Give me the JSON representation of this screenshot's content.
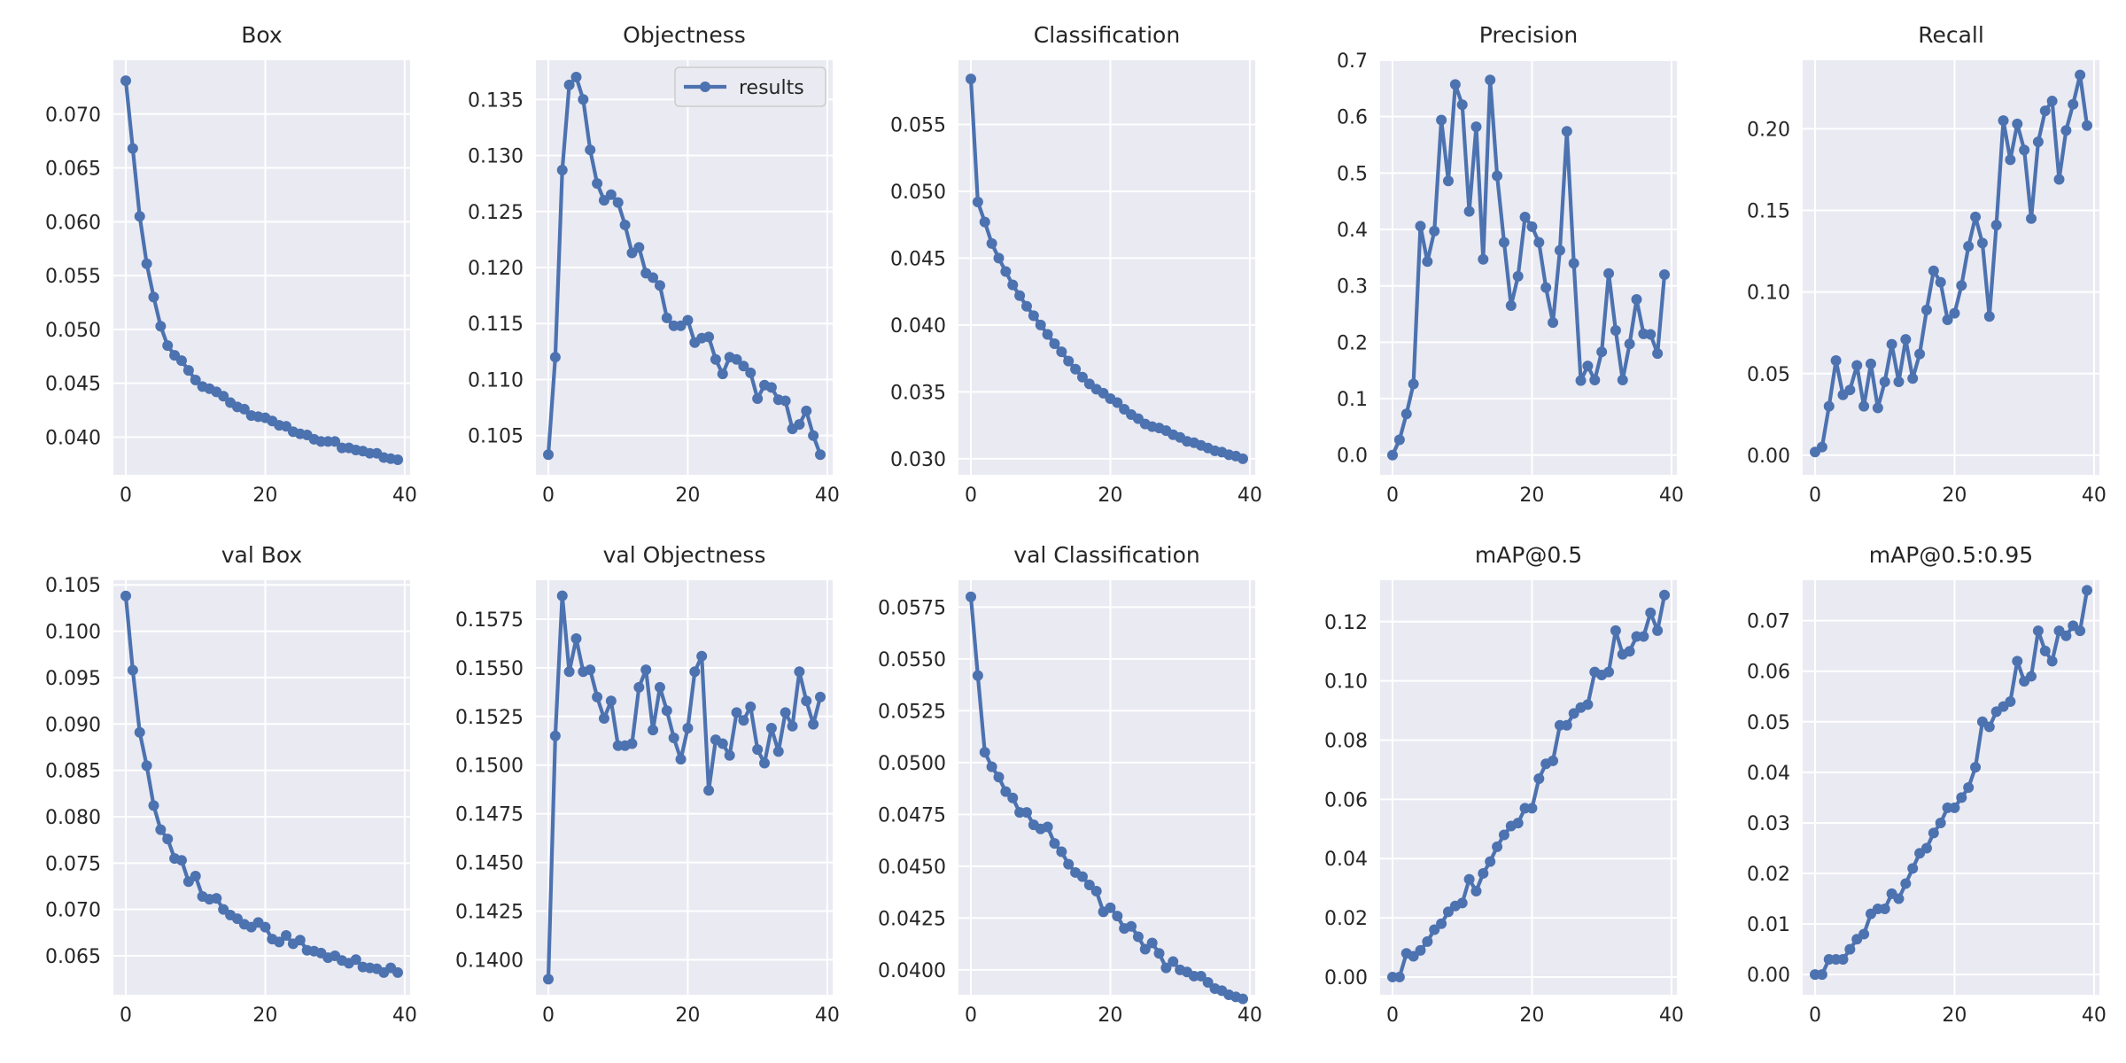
{
  "figure": {
    "background": "#ffffff",
    "axes_facecolor": "#eaeaf2",
    "grid_color": "#ffffff",
    "line_color": "#4c72b0",
    "legend_label": "results"
  },
  "chart_data": [
    {
      "type": "line",
      "title": "Box",
      "xlim": [
        0,
        39
      ],
      "ylim": [
        0.0365,
        0.075
      ],
      "xticks": [
        "0",
        "20",
        "40"
      ],
      "yticks": [
        "0.040",
        "0.045",
        "0.050",
        "0.055",
        "0.060",
        "0.065",
        "0.070"
      ],
      "x": [
        0,
        1,
        2,
        3,
        4,
        5,
        6,
        7,
        8,
        9,
        10,
        11,
        12,
        13,
        14,
        15,
        16,
        17,
        18,
        19,
        20,
        21,
        22,
        23,
        24,
        25,
        26,
        27,
        28,
        29,
        30,
        31,
        32,
        33,
        34,
        35,
        36,
        37,
        38,
        39
      ],
      "series": [
        {
          "name": "results",
          "values": [
            0.0731,
            0.0668,
            0.0605,
            0.0561,
            0.053,
            0.0503,
            0.0485,
            0.0476,
            0.0471,
            0.0462,
            0.0453,
            0.0447,
            0.0445,
            0.0442,
            0.0438,
            0.0432,
            0.0428,
            0.0426,
            0.042,
            0.0419,
            0.0418,
            0.0415,
            0.0411,
            0.041,
            0.0405,
            0.0403,
            0.0402,
            0.0398,
            0.0396,
            0.0396,
            0.0396,
            0.039,
            0.039,
            0.0388,
            0.0387,
            0.0385,
            0.0385,
            0.0381,
            0.038,
            0.0379
          ]
        }
      ]
    },
    {
      "type": "line",
      "title": "Objectness",
      "xlim": [
        0,
        39
      ],
      "ylim": [
        0.1015,
        0.1385
      ],
      "xticks": [
        "0",
        "20",
        "40"
      ],
      "yticks": [
        "0.105",
        "0.110",
        "0.115",
        "0.120",
        "0.125",
        "0.130",
        "0.135"
      ],
      "legend": {
        "entries": [
          "results"
        ],
        "placement": "upper right"
      },
      "x": [
        0,
        1,
        2,
        3,
        4,
        5,
        6,
        7,
        8,
        9,
        10,
        11,
        12,
        13,
        14,
        15,
        16,
        17,
        18,
        19,
        20,
        21,
        22,
        23,
        24,
        25,
        26,
        27,
        28,
        29,
        30,
        31,
        32,
        33,
        34,
        35,
        36,
        37,
        38,
        39
      ],
      "series": [
        {
          "name": "results",
          "values": [
            0.1033,
            0.112,
            0.1287,
            0.1363,
            0.137,
            0.135,
            0.1305,
            0.1275,
            0.126,
            0.1265,
            0.1258,
            0.1238,
            0.1213,
            0.1218,
            0.1195,
            0.1191,
            0.1184,
            0.1155,
            0.1148,
            0.1148,
            0.1153,
            0.1133,
            0.1137,
            0.1138,
            0.1118,
            0.1105,
            0.112,
            0.1118,
            0.1112,
            0.1106,
            0.1083,
            0.1095,
            0.1093,
            0.1082,
            0.1081,
            0.1056,
            0.106,
            0.1072,
            0.105,
            0.1033
          ]
        }
      ]
    },
    {
      "type": "line",
      "title": "Classification",
      "xlim": [
        0,
        39
      ],
      "ylim": [
        0.0288,
        0.0598
      ],
      "xticks": [
        "0",
        "20",
        "40"
      ],
      "yticks": [
        "0.030",
        "0.035",
        "0.040",
        "0.045",
        "0.050",
        "0.055"
      ],
      "x": [
        0,
        1,
        2,
        3,
        4,
        5,
        6,
        7,
        8,
        9,
        10,
        11,
        12,
        13,
        14,
        15,
        16,
        17,
        18,
        19,
        20,
        21,
        22,
        23,
        24,
        25,
        26,
        27,
        28,
        29,
        30,
        31,
        32,
        33,
        34,
        35,
        36,
        37,
        38,
        39
      ],
      "series": [
        {
          "name": "results",
          "values": [
            0.0584,
            0.0492,
            0.0477,
            0.0461,
            0.045,
            0.044,
            0.043,
            0.0422,
            0.0414,
            0.0407,
            0.04,
            0.0393,
            0.0386,
            0.038,
            0.0373,
            0.0367,
            0.0361,
            0.0356,
            0.0352,
            0.0349,
            0.0345,
            0.0342,
            0.0337,
            0.0333,
            0.033,
            0.0326,
            0.0324,
            0.0323,
            0.0321,
            0.0318,
            0.0316,
            0.0313,
            0.0312,
            0.031,
            0.0308,
            0.0306,
            0.0305,
            0.0303,
            0.0302,
            0.03
          ]
        }
      ]
    },
    {
      "type": "line",
      "title": "Precision",
      "xlim": [
        0,
        39
      ],
      "ylim": [
        -0.035,
        0.7
      ],
      "xticks": [
        "0",
        "20",
        "40"
      ],
      "yticks": [
        "0.0",
        "0.1",
        "0.2",
        "0.3",
        "0.4",
        "0.5",
        "0.6",
        "0.7"
      ],
      "x": [
        0,
        1,
        2,
        3,
        4,
        5,
        6,
        7,
        8,
        9,
        10,
        11,
        12,
        13,
        14,
        15,
        16,
        17,
        18,
        19,
        20,
        21,
        22,
        23,
        24,
        25,
        26,
        27,
        28,
        29,
        30,
        31,
        32,
        33,
        34,
        35,
        36,
        37,
        38,
        39
      ],
      "series": [
        {
          "name": "results",
          "values": [
            0.0,
            0.027,
            0.073,
            0.126,
            0.406,
            0.343,
            0.397,
            0.594,
            0.486,
            0.657,
            0.621,
            0.432,
            0.582,
            0.347,
            0.665,
            0.495,
            0.377,
            0.265,
            0.317,
            0.422,
            0.405,
            0.377,
            0.297,
            0.235,
            0.363,
            0.574,
            0.34,
            0.132,
            0.158,
            0.133,
            0.183,
            0.322,
            0.221,
            0.133,
            0.197,
            0.276,
            0.215,
            0.214,
            0.18,
            0.32
          ]
        }
      ]
    },
    {
      "type": "line",
      "title": "Recall",
      "xlim": [
        0,
        39
      ],
      "ylim": [
        -0.012,
        0.242
      ],
      "xticks": [
        "0",
        "20",
        "40"
      ],
      "yticks": [
        "0.00",
        "0.05",
        "0.10",
        "0.15",
        "0.20"
      ],
      "x": [
        0,
        1,
        2,
        3,
        4,
        5,
        6,
        7,
        8,
        9,
        10,
        11,
        12,
        13,
        14,
        15,
        16,
        17,
        18,
        19,
        20,
        21,
        22,
        23,
        24,
        25,
        26,
        27,
        28,
        29,
        30,
        31,
        32,
        33,
        34,
        35,
        36,
        37,
        38,
        39
      ],
      "series": [
        {
          "name": "results",
          "values": [
            0.002,
            0.005,
            0.03,
            0.058,
            0.037,
            0.04,
            0.055,
            0.03,
            0.056,
            0.029,
            0.045,
            0.068,
            0.045,
            0.071,
            0.047,
            0.062,
            0.089,
            0.113,
            0.106,
            0.083,
            0.087,
            0.104,
            0.128,
            0.146,
            0.13,
            0.085,
            0.141,
            0.205,
            0.181,
            0.203,
            0.187,
            0.145,
            0.192,
            0.211,
            0.217,
            0.169,
            0.199,
            0.215,
            0.233,
            0.202
          ]
        }
      ]
    },
    {
      "type": "line",
      "title": "val Box",
      "xlim": [
        0,
        39
      ],
      "ylim": [
        0.0608,
        0.1055
      ],
      "xticks": [
        "0",
        "20",
        "40"
      ],
      "yticks": [
        "0.065",
        "0.070",
        "0.075",
        "0.080",
        "0.085",
        "0.090",
        "0.095",
        "0.100",
        "0.105"
      ],
      "x": [
        0,
        1,
        2,
        3,
        4,
        5,
        6,
        7,
        8,
        9,
        10,
        11,
        12,
        13,
        14,
        15,
        16,
        17,
        18,
        19,
        20,
        21,
        22,
        23,
        24,
        25,
        26,
        27,
        28,
        29,
        30,
        31,
        32,
        33,
        34,
        35,
        36,
        37,
        38,
        39
      ],
      "series": [
        {
          "name": "results",
          "values": [
            0.1038,
            0.0958,
            0.0891,
            0.0855,
            0.0812,
            0.0786,
            0.0776,
            0.0755,
            0.0753,
            0.073,
            0.0736,
            0.0714,
            0.0711,
            0.0712,
            0.07,
            0.0694,
            0.069,
            0.0684,
            0.0681,
            0.0686,
            0.0681,
            0.0668,
            0.0665,
            0.0672,
            0.0663,
            0.0667,
            0.0656,
            0.0655,
            0.0653,
            0.0648,
            0.065,
            0.0645,
            0.0642,
            0.0646,
            0.0638,
            0.0637,
            0.0636,
            0.0632,
            0.0637,
            0.0632
          ]
        }
      ]
    },
    {
      "type": "line",
      "title": "val Objectness",
      "xlim": [
        0,
        39
      ],
      "ylim": [
        0.1382,
        0.1595
      ],
      "xticks": [
        "0",
        "20",
        "40"
      ],
      "yticks": [
        "0.1400",
        "0.1425",
        "0.1450",
        "0.1475",
        "0.1500",
        "0.1525",
        "0.1550",
        "0.1575"
      ],
      "x": [
        0,
        1,
        2,
        3,
        4,
        5,
        6,
        7,
        8,
        9,
        10,
        11,
        12,
        13,
        14,
        15,
        16,
        17,
        18,
        19,
        20,
        21,
        22,
        23,
        24,
        25,
        26,
        27,
        28,
        29,
        30,
        31,
        32,
        33,
        34,
        35,
        36,
        37,
        38,
        39
      ],
      "series": [
        {
          "name": "results",
          "values": [
            0.139,
            0.1515,
            0.1587,
            0.1548,
            0.1565,
            0.1548,
            0.1549,
            0.1535,
            0.1524,
            0.1533,
            0.151,
            0.151,
            0.1511,
            0.154,
            0.1549,
            0.1518,
            0.154,
            0.1528,
            0.1514,
            0.1503,
            0.1519,
            0.1548,
            0.1556,
            0.1487,
            0.1513,
            0.1511,
            0.1505,
            0.1527,
            0.1523,
            0.153,
            0.1508,
            0.1501,
            0.1519,
            0.1507,
            0.1527,
            0.152,
            0.1548,
            0.1533,
            0.1521,
            0.1535
          ]
        }
      ]
    },
    {
      "type": "line",
      "title": "val Classification",
      "xlim": [
        0,
        39
      ],
      "ylim": [
        0.0388,
        0.0588
      ],
      "xticks": [
        "0",
        "20",
        "40"
      ],
      "yticks": [
        "0.0400",
        "0.0425",
        "0.0450",
        "0.0475",
        "0.0500",
        "0.0525",
        "0.0550",
        "0.0575"
      ],
      "x": [
        0,
        1,
        2,
        3,
        4,
        5,
        6,
        7,
        8,
        9,
        10,
        11,
        12,
        13,
        14,
        15,
        16,
        17,
        18,
        19,
        20,
        21,
        22,
        23,
        24,
        25,
        26,
        27,
        28,
        29,
        30,
        31,
        32,
        33,
        34,
        35,
        36,
        37,
        38,
        39
      ],
      "series": [
        {
          "name": "results",
          "values": [
            0.058,
            0.0542,
            0.0505,
            0.0498,
            0.0493,
            0.0486,
            0.0483,
            0.0476,
            0.0476,
            0.047,
            0.0468,
            0.0469,
            0.0461,
            0.0457,
            0.0451,
            0.0447,
            0.0445,
            0.0441,
            0.0438,
            0.0428,
            0.043,
            0.0426,
            0.042,
            0.0421,
            0.0416,
            0.041,
            0.0413,
            0.0408,
            0.0401,
            0.0404,
            0.04,
            0.0399,
            0.0397,
            0.0397,
            0.0394,
            0.0391,
            0.039,
            0.0388,
            0.0387,
            0.0386
          ]
        }
      ]
    },
    {
      "type": "line",
      "title": "mAP@0.5",
      "xlim": [
        0,
        39
      ],
      "ylim": [
        -0.006,
        0.134
      ],
      "xticks": [
        "0",
        "20",
        "40"
      ],
      "yticks": [
        "0.00",
        "0.02",
        "0.04",
        "0.06",
        "0.08",
        "0.10",
        "0.12"
      ],
      "x": [
        0,
        1,
        2,
        3,
        4,
        5,
        6,
        7,
        8,
        9,
        10,
        11,
        12,
        13,
        14,
        15,
        16,
        17,
        18,
        19,
        20,
        21,
        22,
        23,
        24,
        25,
        26,
        27,
        28,
        29,
        30,
        31,
        32,
        33,
        34,
        35,
        36,
        37,
        38,
        39
      ],
      "series": [
        {
          "name": "results",
          "values": [
            0.0,
            0.0,
            0.008,
            0.007,
            0.009,
            0.012,
            0.016,
            0.018,
            0.022,
            0.024,
            0.025,
            0.033,
            0.029,
            0.035,
            0.039,
            0.044,
            0.048,
            0.051,
            0.052,
            0.057,
            0.057,
            0.067,
            0.072,
            0.073,
            0.085,
            0.085,
            0.089,
            0.091,
            0.092,
            0.103,
            0.102,
            0.103,
            0.117,
            0.109,
            0.11,
            0.115,
            0.115,
            0.123,
            0.117,
            0.129
          ]
        }
      ]
    },
    {
      "type": "line",
      "title": "mAP@0.5:0.95",
      "xlim": [
        0,
        39
      ],
      "ylim": [
        -0.004,
        0.078
      ],
      "xticks": [
        "0",
        "20",
        "40"
      ],
      "yticks": [
        "0.00",
        "0.01",
        "0.02",
        "0.03",
        "0.04",
        "0.05",
        "0.06",
        "0.07"
      ],
      "x": [
        0,
        1,
        2,
        3,
        4,
        5,
        6,
        7,
        8,
        9,
        10,
        11,
        12,
        13,
        14,
        15,
        16,
        17,
        18,
        19,
        20,
        21,
        22,
        23,
        24,
        25,
        26,
        27,
        28,
        29,
        30,
        31,
        32,
        33,
        34,
        35,
        36,
        37,
        38,
        39
      ],
      "series": [
        {
          "name": "results",
          "values": [
            0.0,
            0.0,
            0.003,
            0.003,
            0.003,
            0.005,
            0.007,
            0.008,
            0.012,
            0.013,
            0.013,
            0.016,
            0.015,
            0.018,
            0.021,
            0.024,
            0.025,
            0.028,
            0.03,
            0.033,
            0.033,
            0.035,
            0.037,
            0.041,
            0.05,
            0.049,
            0.052,
            0.053,
            0.054,
            0.062,
            0.058,
            0.059,
            0.068,
            0.064,
            0.062,
            0.068,
            0.067,
            0.069,
            0.068,
            0.076
          ]
        }
      ]
    }
  ]
}
